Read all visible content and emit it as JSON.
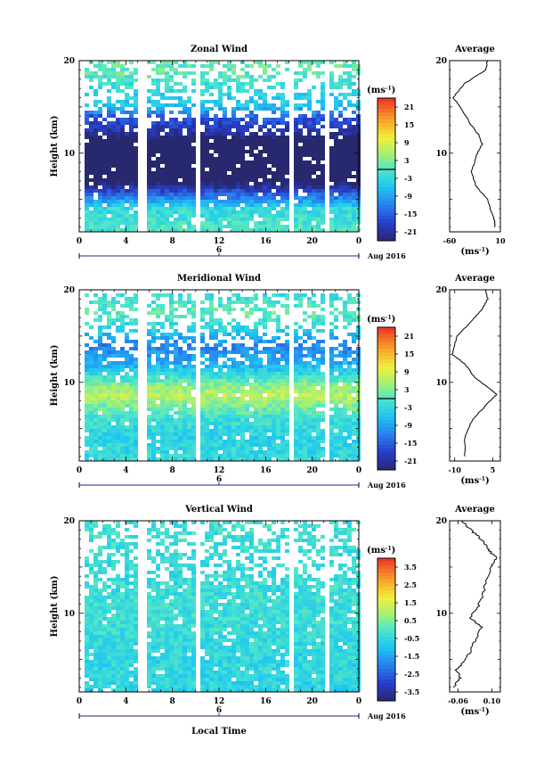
{
  "figure": {
    "xlabel": "Local Time",
    "date_label": "Aug 2016",
    "cb_unit": "(ms",
    "avg_unit": "(ms",
    "unit_exp": "-1",
    "unit_close": ")",
    "ylabel": "Height (km)"
  },
  "chart_data": [
    {
      "type": "heatmap",
      "title": "Zonal Wind",
      "xlabel": "Local Time",
      "ylabel": "Height (km)",
      "x_ticks": [
        "0",
        "4",
        "8",
        "12",
        "16",
        "20",
        "0"
      ],
      "y_ticks": [
        "10",
        "20"
      ],
      "day_marker": "6",
      "xlim": [
        0,
        24
      ],
      "ylim": [
        1.5,
        20
      ],
      "colorbar": {
        "unit": "(ms-1)",
        "ticks": [
          "21",
          "15",
          "9",
          "3",
          "-3",
          "-9",
          "-15",
          "-21"
        ],
        "range": [
          -24,
          24
        ],
        "contour_at": 0
      },
      "profile": [
        [
          -0.6,
          2
        ],
        [
          -3,
          4
        ],
        [
          -18,
          6
        ],
        [
          -35,
          8
        ],
        [
          -43,
          9
        ],
        [
          -37,
          10
        ],
        [
          -22,
          12
        ],
        [
          -15,
          14
        ],
        [
          -6,
          15
        ],
        [
          -3,
          17
        ],
        [
          0,
          18.4
        ],
        [
          1,
          19.2
        ]
      ],
      "average": {
        "title": "Average",
        "x_ticks": [
          "-60",
          "10"
        ],
        "xlim": [
          -60,
          10
        ],
        "y_ticks": [
          "10",
          "20"
        ],
        "unit": "(ms-1)",
        "values": [
          [
            3,
            2
          ],
          [
            1,
            3
          ],
          [
            -8,
            5
          ],
          [
            -24,
            6.5
          ],
          [
            -30,
            8
          ],
          [
            -22,
            10
          ],
          [
            -15,
            11
          ],
          [
            -20,
            12
          ],
          [
            -30,
            13
          ],
          [
            -45,
            15
          ],
          [
            -55,
            16
          ],
          [
            -40,
            17.5
          ],
          [
            -20,
            18.5
          ],
          [
            -10,
            19
          ],
          [
            -8,
            20
          ]
        ]
      },
      "data_gaps_hours": [
        [
          4.9,
          5.5
        ],
        [
          9.8,
          10.2
        ],
        [
          17.9,
          18.3
        ],
        [
          20.9,
          21.3
        ]
      ],
      "gap_region_top": 20.4,
      "data_start_hour": 0.2
    },
    {
      "type": "heatmap",
      "title": "Meridional Wind",
      "xlabel": "Local Time",
      "ylabel": "Height (km)",
      "x_ticks": [
        "0",
        "4",
        "8",
        "12",
        "16",
        "20",
        "0"
      ],
      "y_ticks": [
        "10",
        "20"
      ],
      "day_marker": "6",
      "xlim": [
        0,
        24
      ],
      "ylim": [
        1.5,
        20
      ],
      "colorbar": {
        "unit": "(ms-1)",
        "ticks": [
          "21",
          "15",
          "9",
          "3",
          "-3",
          "-9",
          "-15",
          "-21"
        ],
        "range": [
          -24,
          24
        ],
        "contour_at": 0
      },
      "profile": [
        [
          -3,
          2
        ],
        [
          -4,
          4
        ],
        [
          -2,
          6
        ],
        [
          3,
          7.5
        ],
        [
          7,
          8.5
        ],
        [
          4,
          9.5
        ],
        [
          -1,
          10.5
        ],
        [
          -8,
          12
        ],
        [
          -12,
          14
        ],
        [
          -3,
          16
        ],
        [
          1,
          17.5
        ],
        [
          -2,
          19
        ]
      ],
      "average": {
        "title": "Average",
        "x_ticks": [
          "-10",
          "5"
        ],
        "xlim": [
          -12,
          8
        ],
        "y_ticks": [
          "10",
          "20"
        ],
        "unit": "(ms-1)",
        "values": [
          [
            -6,
            2
          ],
          [
            -6,
            4
          ],
          [
            -3,
            6
          ],
          [
            4,
            8
          ],
          [
            6.5,
            8.7
          ],
          [
            3,
            9.5
          ],
          [
            -2,
            10.5
          ],
          [
            -6,
            12
          ],
          [
            -11,
            13
          ],
          [
            -9,
            15
          ],
          [
            -2,
            17
          ],
          [
            1,
            18
          ],
          [
            3,
            19
          ],
          [
            2,
            20
          ]
        ]
      },
      "data_gaps_hours": [
        [
          5.0,
          5.6
        ],
        [
          9.9,
          10.3
        ],
        [
          18.0,
          18.4
        ],
        [
          20.9,
          21.3
        ]
      ],
      "gap_region_top": 19.5,
      "data_start_hour": 0.2
    },
    {
      "type": "heatmap",
      "title": "Vertical Wind",
      "xlabel": "Local Time",
      "ylabel": "Height (km)",
      "x_ticks": [
        "0",
        "4",
        "8",
        "12",
        "16",
        "20",
        "0"
      ],
      "y_ticks": [
        "10",
        "20"
      ],
      "day_marker": "6",
      "xlim": [
        0,
        24
      ],
      "ylim": [
        1.5,
        20
      ],
      "colorbar": {
        "unit": "(ms-1)",
        "ticks": [
          "3.5",
          "2.5",
          "1.5",
          "0.5",
          "-0.5",
          "-1.5",
          "-2.5",
          "-3.5"
        ],
        "range": [
          -4,
          4
        ],
        "contour_at": null
      },
      "profile": [
        [
          -0.6,
          2
        ],
        [
          -0.5,
          6
        ],
        [
          -0.3,
          10
        ],
        [
          -0.4,
          14
        ],
        [
          -0.3,
          19
        ]
      ],
      "average": {
        "title": "Average",
        "x_ticks": [
          "-0.06",
          "0.10"
        ],
        "xlim": [
          -0.1,
          0.14
        ],
        "y_ticks": [
          "10",
          "20"
        ],
        "unit": "(ms-1)",
        "values": [
          [
            -0.08,
            2
          ],
          [
            -0.05,
            3
          ],
          [
            -0.07,
            4
          ],
          [
            -0.02,
            5
          ],
          [
            0.02,
            7
          ],
          [
            0.05,
            8.5
          ],
          [
            0.0,
            9.5
          ],
          [
            0.04,
            11
          ],
          [
            0.07,
            13
          ],
          [
            0.1,
            15
          ],
          [
            0.12,
            16
          ],
          [
            0.08,
            17
          ],
          [
            0.05,
            18
          ],
          [
            0.0,
            19
          ],
          [
            -0.04,
            20
          ]
        ]
      },
      "data_gaps_hours": [
        [
          4.9,
          5.5
        ],
        [
          9.9,
          10.3
        ],
        [
          18.0,
          18.4
        ],
        [
          20.9,
          21.3
        ]
      ],
      "gap_region_top": 20.4,
      "data_start_hour": 0.2
    }
  ]
}
